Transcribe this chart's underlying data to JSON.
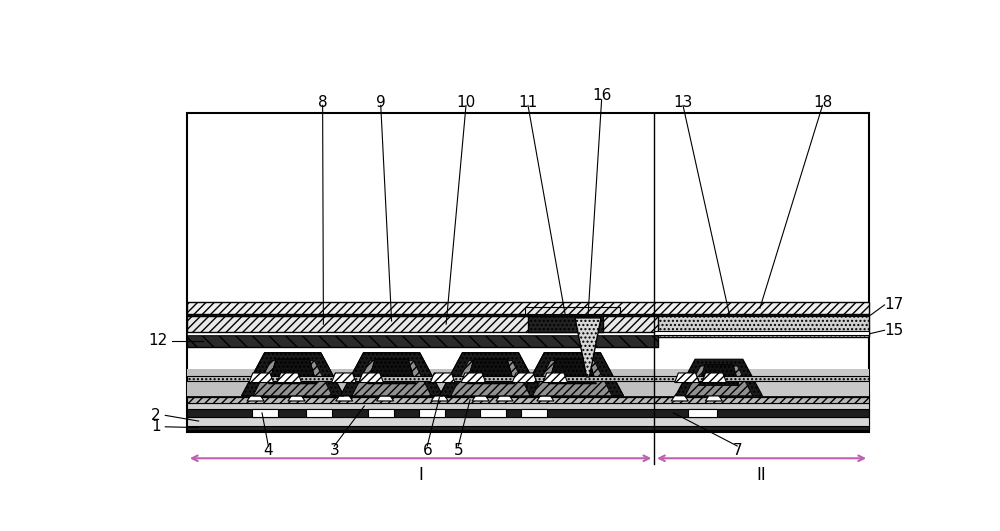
{
  "fig_width": 10.0,
  "fig_height": 5.31,
  "bg_color": "#ffffff",
  "bx": 0.08,
  "by": 0.1,
  "bw": 0.88,
  "bh": 0.78,
  "region_split": 0.685,
  "layer_colors": {
    "substrate": "#f0f0f0",
    "buffer": "#c8c8c8",
    "gate_insulator": "#e8e8e8",
    "gate_metal": "#ffffff",
    "active": "#a0a0a0",
    "sd_metal": "#ffffff",
    "passivation": "#d8d8d8",
    "planar_dark": "#1a1a1a",
    "planar_gray": "#909090",
    "planar_light": "#c8c8c8",
    "encap_hatch": "#e8e8e8",
    "encap_dark": "#333333",
    "via_fill": "#d0d0d0",
    "top_light": "#f0f0f0",
    "top_thin": "#111111",
    "region2_planar": "#c0c0c0",
    "black": "#111111",
    "darkgray": "#2a2a2a",
    "medgray": "#606060",
    "lightgray": "#b8b8b8"
  }
}
